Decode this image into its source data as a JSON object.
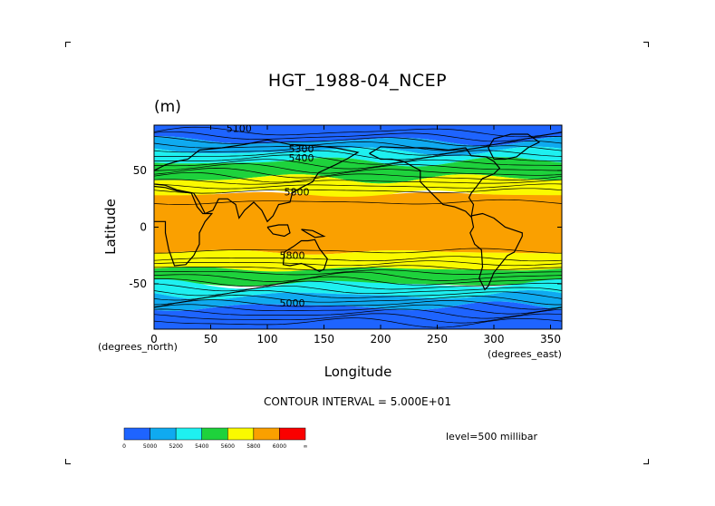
{
  "chart_data": {
    "type": "heatmap",
    "title": "HGT_1988-04_NCEP",
    "units": "(m)",
    "xlabel": "Longitude",
    "ylabel": "Latitude",
    "xlim": [
      0,
      360
    ],
    "ylim": [
      -90,
      90
    ],
    "x_ticks": [
      0,
      50,
      100,
      150,
      200,
      250,
      300,
      350
    ],
    "y_ticks": [
      50,
      0,
      -50
    ],
    "x_unit_label": "(degrees_east)",
    "y_unit_label": "(degrees_north)",
    "contour_labels": [
      {
        "text": "5100",
        "lon": 75,
        "lat": 84
      },
      {
        "text": "5300",
        "lon": 130,
        "lat": 66
      },
      {
        "text": "5400",
        "lon": 130,
        "lat": 58
      },
      {
        "text": "5800",
        "lon": 126,
        "lat": 28
      },
      {
        "text": "5800",
        "lon": 122,
        "lat": -28
      },
      {
        "text": "5000",
        "lon": 122,
        "lat": -70
      }
    ],
    "bands": [
      {
        "lat_from": 90,
        "lat_to": 76,
        "color": "#1E64FF"
      },
      {
        "lat_from": 76,
        "lat_to": 67,
        "color": "#0FAAF0"
      },
      {
        "lat_from": 67,
        "lat_to": 58,
        "color": "#1EF0F0"
      },
      {
        "lat_from": 58,
        "lat_to": 43,
        "color": "#1ED23C"
      },
      {
        "lat_from": 43,
        "lat_to": 29,
        "color": "#FAFA00"
      },
      {
        "lat_from": 29,
        "lat_to": -22,
        "color": "#FAA000"
      },
      {
        "lat_from": -22,
        "lat_to": -37,
        "color": "#FAFA00"
      },
      {
        "lat_from": -37,
        "lat_to": -50,
        "color": "#1ED23C"
      },
      {
        "lat_from": -50,
        "lat_to": -60,
        "color": "#1EF0F0"
      },
      {
        "lat_from": -60,
        "lat_to": -70,
        "color": "#0FAAF0"
      },
      {
        "lat_from": -70,
        "lat_to": -90,
        "color": "#1E64FF"
      }
    ],
    "contour_interval_text": "CONTOUR INTERVAL = 5.000E+01",
    "level_text": "level=500 millibar",
    "colorbar": {
      "colors": [
        "#1E64FF",
        "#0FAAF0",
        "#1EF0F0",
        "#1ED23C",
        "#FAFA00",
        "#FAA000",
        "#FA0000"
      ],
      "labels": [
        "0",
        "5000",
        "5200",
        "5400",
        "5600",
        "5800",
        "6000",
        "∞"
      ]
    }
  }
}
